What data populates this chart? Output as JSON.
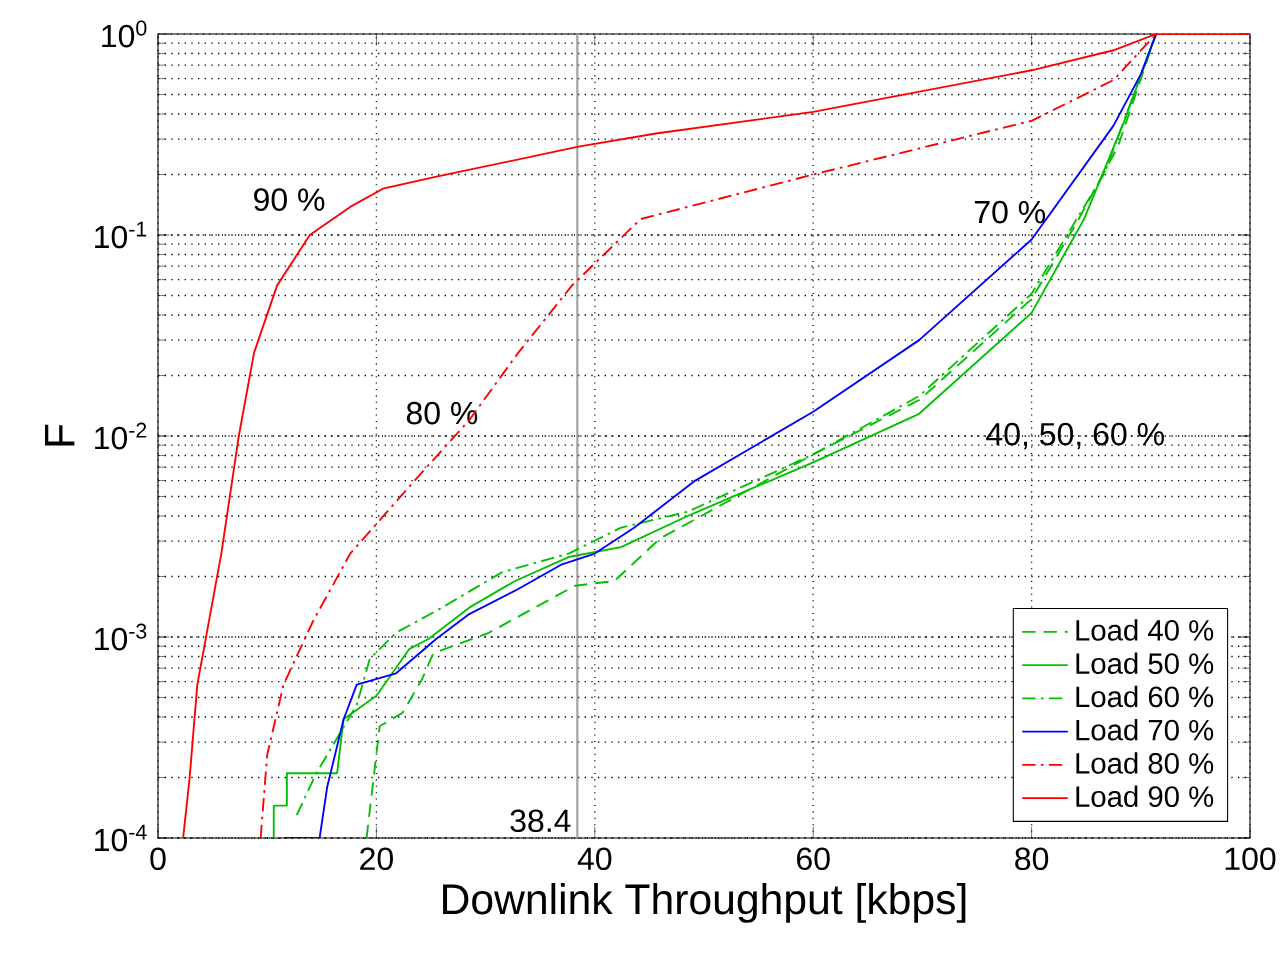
{
  "chart_data": {
    "type": "line",
    "xlabel": "Downlink Throughput [kbps]",
    "ylabel": "F",
    "xlim": [
      0,
      100
    ],
    "ylim": [
      0.0001,
      1
    ],
    "log": "y",
    "grid": true,
    "legend": "bottom right",
    "xticks": [
      0,
      20,
      40,
      60,
      80,
      100
    ],
    "yticks": [
      {
        "value": 0.0001,
        "label": "10$^{-4}$"
      },
      {
        "value": 0.001,
        "label": "10$^{-3}$"
      },
      {
        "value": 0.01,
        "label": "10$^{-2}$"
      },
      {
        "value": 0.1,
        "label": "10$^{-1}$"
      },
      {
        "value": 1,
        "label": "10$^{0}$"
      }
    ],
    "ref_lines": [
      {
        "axis": "x",
        "value": 38.4,
        "label": "38.4",
        "color": "#a0a0a0"
      }
    ],
    "annotations": [
      {
        "text": "90 %",
        "x": 12,
        "y": 0.15
      },
      {
        "text": "80 %",
        "x": 26,
        "y": 0.013
      },
      {
        "text": "70 %",
        "x": 78,
        "y": 0.13
      },
      "40, 50, 60 %"
    ],
    "series": [
      {
        "name": "Load 40 %",
        "color": "#00c000",
        "line_style": "dashed",
        "x": [
          19.1,
          20.3,
          22.4,
          24.2,
          25.2,
          30.3,
          34.5,
          38.2,
          41.8,
          46,
          49,
          60,
          69.7,
          80,
          84.2,
          87.9,
          91.4
        ],
        "values": [
          0.0001,
          0.00036,
          0.00042,
          0.00062,
          0.00083,
          0.00105,
          0.0014,
          0.0018,
          0.0019,
          0.0031,
          0.0038,
          0.0081,
          0.0151,
          0.048,
          0.117,
          0.275,
          1
        ]
      },
      {
        "name": "Load 50 %",
        "color": "#00c000",
        "line_style": "solid",
        "x": [
          10.6,
          10.6,
          11.8,
          11.8,
          16.4,
          17,
          20,
          23,
          24.8,
          28.5,
          32.7,
          37.6,
          42.4,
          48.5,
          60,
          69.7,
          80,
          84.8,
          88.5,
          91.4
        ],
        "values": [
          0.0001,
          0.000145,
          0.000145,
          0.00021,
          0.00021,
          0.00039,
          0.00051,
          0.00087,
          0.00098,
          0.0014,
          0.0019,
          0.0025,
          0.0028,
          0.004,
          0.0074,
          0.0129,
          0.041,
          0.12,
          0.37,
          1
        ]
      },
      {
        "name": "Load 60 %",
        "color": "#00c000",
        "line_style": "dashdotted",
        "x": [
          12.7,
          14.5,
          18.2,
          19.4,
          21.8,
          26,
          31.5,
          37.6,
          42.4,
          48.5,
          60,
          69.7,
          80,
          86.7,
          91.4
        ],
        "values": [
          0.00013,
          0.00021,
          0.00046,
          0.00078,
          0.00105,
          0.0014,
          0.0021,
          0.0026,
          0.0035,
          0.0042,
          0.0081,
          0.0158,
          0.051,
          0.204,
          1
        ]
      },
      {
        "name": "Load 70 %",
        "color": "#0000ff",
        "line_style": "solid",
        "x": [
          11.5,
          14.8,
          15.5,
          17,
          18.2,
          21.8,
          25.5,
          28.5,
          32.7,
          37,
          40,
          43.6,
          49.2,
          60,
          69.7,
          80,
          87.5,
          90,
          91.4
        ],
        "values": [
          0.0001,
          0.0001,
          0.00018,
          0.00039,
          0.00058,
          0.00066,
          0.00098,
          0.0013,
          0.0017,
          0.0023,
          0.0026,
          0.0035,
          0.006,
          0.0132,
          0.03,
          0.095,
          0.35,
          0.63,
          1
        ]
      },
      {
        "name": "Load 80 %",
        "color": "#ff0000",
        "line_style": "dashdotted",
        "x": [
          9.4,
          10,
          11.5,
          14.2,
          17.6,
          23,
          28.5,
          33,
          37.9,
          44.2,
          60,
          80,
          87.5,
          91.4
        ],
        "values": [
          0.0001,
          0.00026,
          0.00058,
          0.0012,
          0.0026,
          0.0056,
          0.012,
          0.026,
          0.056,
          0.12,
          0.2,
          0.37,
          0.59,
          1
        ]
      },
      {
        "name": "Load 90 %",
        "color": "#ff0000",
        "line_style": "solid",
        "x": [
          2.3,
          2.9,
          3.6,
          5.8,
          7.4,
          8.8,
          10.9,
          13.9,
          17.6,
          20.6,
          25.5,
          38.5,
          45.6,
          60,
          80,
          87.5,
          91.4,
          100
        ],
        "values": [
          0.0001,
          0.0002,
          0.00058,
          0.0026,
          0.01,
          0.026,
          0.056,
          0.1,
          0.138,
          0.17,
          0.195,
          0.275,
          0.32,
          0.41,
          0.66,
          0.83,
          1,
          1
        ]
      }
    ]
  }
}
